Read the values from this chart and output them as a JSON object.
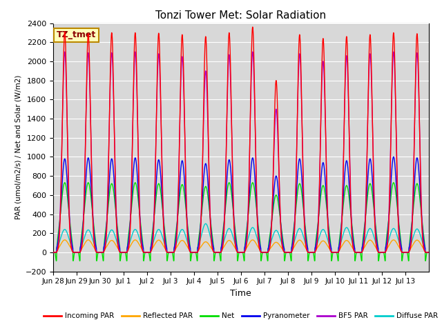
{
  "title": "Tonzi Tower Met: Solar Radiation",
  "ylabel": "PAR (umol/m2/s) / Net and Solar (W/m2)",
  "xlabel": "Time",
  "ylim": [
    -200,
    2400
  ],
  "annotation": "TZ_tmet",
  "x_tick_labels": [
    "Jun 28",
    "Jun 29",
    "Jun 30",
    "Jul 1",
    "Jul 2",
    "Jul 3",
    "Jul 4",
    "Jul 5",
    "Jul 6",
    "Jul 7",
    "Jul 8",
    "Jul 9",
    "Jul 10",
    "Jul 11",
    "Jul 12",
    "Jul 13"
  ],
  "yticks": [
    -200,
    0,
    200,
    400,
    600,
    800,
    1000,
    1200,
    1400,
    1600,
    1800,
    2000,
    2200,
    2400
  ],
  "n_days": 16,
  "n_pts_per_day": 288,
  "series": {
    "incoming_par": {
      "color": "#ff0000",
      "label": "Incoming PAR",
      "sigma": 0.1,
      "lw": 1.0
    },
    "reflected_par": {
      "color": "#ffa500",
      "label": "Reflected PAR",
      "sigma": 0.18,
      "lw": 1.0
    },
    "net": {
      "color": "#00dd00",
      "label": "Net",
      "sigma": 0.17,
      "lw": 1.0
    },
    "pyranometer": {
      "color": "#0000ee",
      "label": "Pyranometer",
      "sigma": 0.14,
      "lw": 1.0
    },
    "bf5_par": {
      "color": "#aa00cc",
      "label": "BF5 PAR",
      "sigma": 0.11,
      "lw": 1.0
    },
    "diffuse_par": {
      "color": "#00cccc",
      "label": "Diffuse PAR",
      "sigma": 0.18,
      "lw": 1.0
    }
  },
  "peaks_incoming": [
    2310,
    2290,
    2300,
    2300,
    2295,
    2280,
    2260,
    2300,
    2360,
    1800,
    2280,
    2240,
    2260,
    2280,
    2300,
    2290
  ],
  "peaks_bf5": [
    2100,
    2090,
    2090,
    2100,
    2080,
    2050,
    1900,
    2070,
    2100,
    1500,
    2080,
    2000,
    2060,
    2080,
    2100,
    2090
  ],
  "peaks_pyrano": [
    980,
    990,
    980,
    990,
    970,
    960,
    930,
    970,
    990,
    800,
    980,
    940,
    960,
    980,
    1000,
    990
  ],
  "peaks_net": [
    730,
    730,
    720,
    730,
    720,
    710,
    690,
    730,
    730,
    600,
    720,
    700,
    700,
    720,
    730,
    720
  ],
  "peaks_reflected": [
    130,
    130,
    125,
    130,
    128,
    125,
    110,
    125,
    130,
    105,
    128,
    120,
    125,
    128,
    130,
    128
  ],
  "peaks_diffuse": [
    240,
    235,
    235,
    240,
    240,
    240,
    300,
    250,
    260,
    230,
    250,
    240,
    260,
    250,
    250,
    245
  ]
}
